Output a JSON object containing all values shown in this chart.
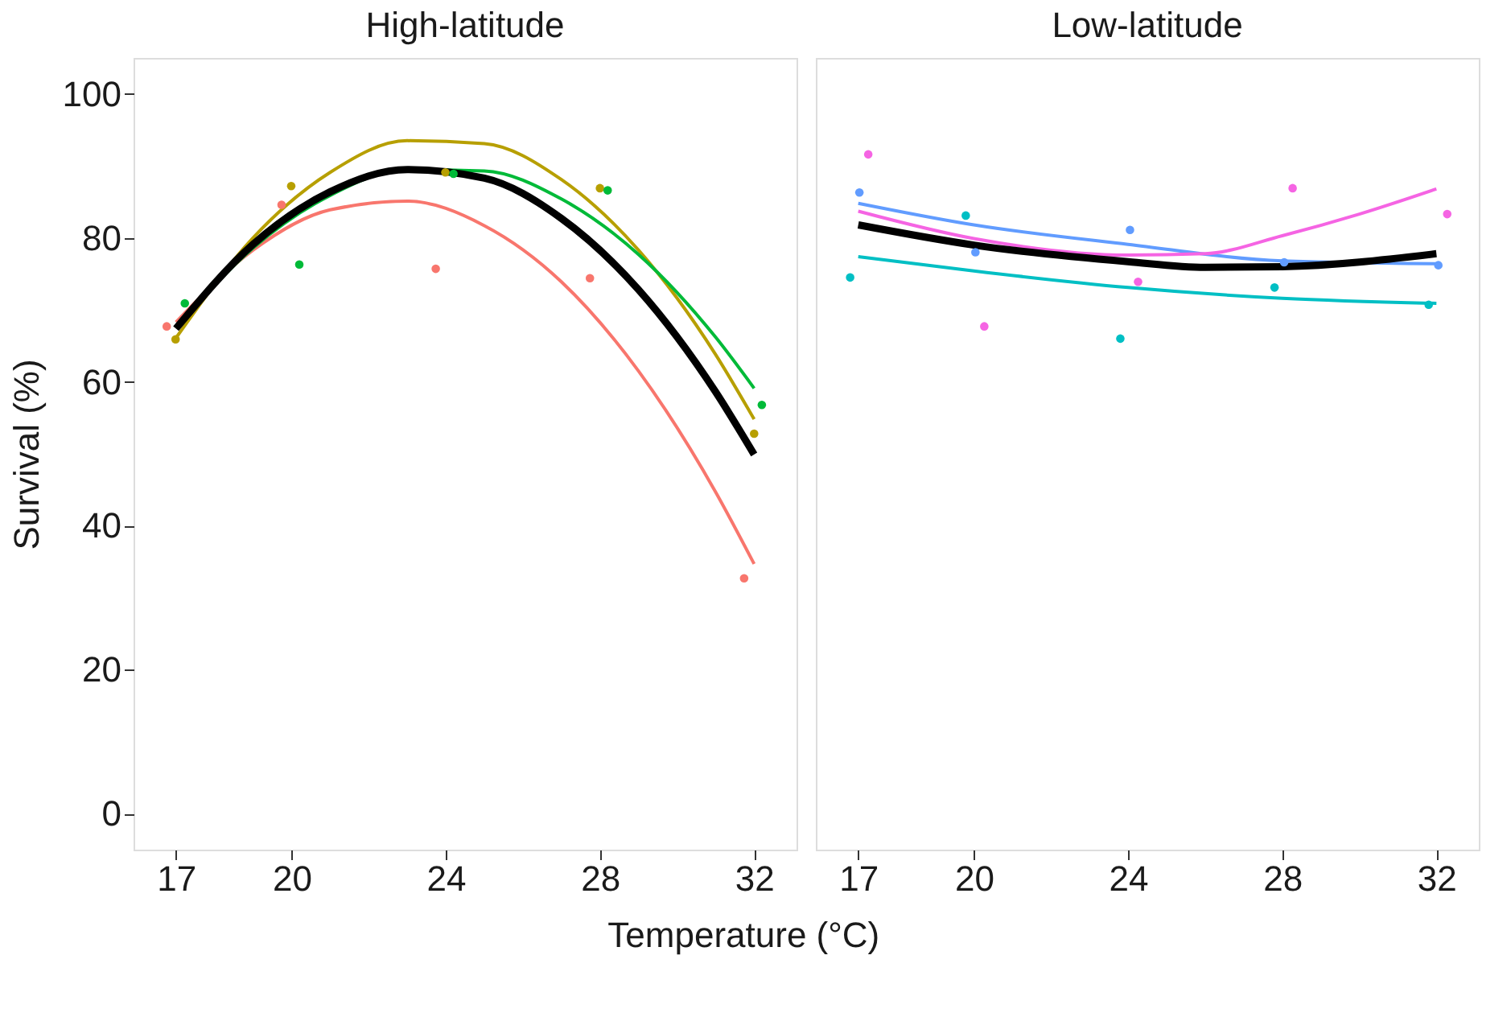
{
  "chart_data": [
    {
      "type": "line",
      "title": "High-latitude",
      "xlabel": "Temperature (°C)",
      "ylabel": "Survival (%)",
      "xlim": [
        15.9,
        33.1
      ],
      "ylim": [
        -5,
        105
      ],
      "xticks": [
        17,
        20,
        24,
        28,
        32
      ],
      "yticks": [
        0,
        20,
        40,
        60,
        80,
        100
      ],
      "grid": false,
      "series": [
        {
          "type": "scatter",
          "color": "#f8766d",
          "x": [
            16.76,
            19.74,
            23.74,
            27.74,
            31.74
          ],
          "values": [
            67.7,
            84.6,
            75.7,
            74.4,
            32.7
          ]
        },
        {
          "type": "scatter",
          "color": "#b79f00",
          "x": [
            16.99,
            19.99,
            23.99,
            28.0,
            32.0
          ],
          "values": [
            65.9,
            87.2,
            89.1,
            86.9,
            52.8
          ]
        },
        {
          "type": "scatter",
          "color": "#00ba38",
          "x": [
            17.23,
            20.2,
            24.2,
            28.2,
            32.2
          ],
          "values": [
            70.9,
            76.3,
            88.9,
            86.6,
            56.8
          ]
        },
        {
          "color": "#f8766d",
          "x": [
            17,
            19,
            21,
            23,
            25,
            27,
            29,
            31,
            32
          ],
          "values": [
            68.3,
            78.3,
            83.9,
            85.1,
            81.7,
            73.9,
            61.5,
            44.7,
            34.7
          ]
        },
        {
          "color": "#b79f00",
          "x": [
            17,
            19,
            21,
            23,
            25,
            27,
            29,
            31,
            32
          ],
          "values": [
            66.1,
            80.0,
            89.1,
            93.5,
            93.1,
            88.1,
            78.3,
            63.8,
            54.8
          ]
        },
        {
          "color": "#00ba38",
          "x": [
            17,
            19,
            21,
            23,
            25,
            27,
            29,
            31,
            32
          ],
          "values": [
            67.5,
            78.6,
            85.9,
            89.5,
            89.3,
            85.4,
            77.7,
            66.2,
            59.1
          ]
        },
        {
          "color": "#000000",
          "x": [
            17,
            19,
            21,
            23,
            25,
            27,
            29,
            31,
            32
          ],
          "values": [
            67.4,
            79.1,
            86.4,
            89.5,
            88.3,
            82.7,
            72.8,
            58.6,
            49.9
          ]
        }
      ]
    },
    {
      "type": "line",
      "title": "Low-latitude",
      "xlim": [
        15.9,
        33.1
      ],
      "ylim": [
        -5,
        105
      ],
      "xticks": [
        17,
        20,
        24,
        28,
        32
      ],
      "yticks": [
        0,
        20,
        40,
        60,
        80,
        100
      ],
      "grid": false,
      "tick_labels": "x",
      "series": [
        {
          "type": "scatter",
          "color": "#00bfc4",
          "x": [
            16.79,
            19.79,
            23.8,
            27.8,
            31.8
          ],
          "values": [
            74.5,
            83.1,
            66.0,
            73.1,
            70.7
          ]
        },
        {
          "type": "scatter",
          "color": "#619cff",
          "x": [
            17.03,
            20.04,
            24.05,
            28.05,
            32.05
          ],
          "values": [
            86.3,
            78.0,
            81.1,
            76.6,
            76.2
          ]
        },
        {
          "type": "scatter",
          "color": "#f564e3",
          "x": [
            17.26,
            20.27,
            24.26,
            28.27,
            32.28
          ],
          "values": [
            91.6,
            67.7,
            73.9,
            86.9,
            83.3
          ]
        },
        {
          "color": "#00bfc4",
          "x": [
            17,
            20,
            24,
            28,
            32
          ],
          "values": [
            77.4,
            75.4,
            73.1,
            71.6,
            70.9
          ]
        },
        {
          "color": "#619cff",
          "x": [
            17,
            20,
            24,
            28,
            32
          ],
          "values": [
            84.8,
            81.8,
            79.1,
            76.8,
            76.4
          ]
        },
        {
          "color": "#f564e3",
          "x": [
            17,
            20,
            24,
            26,
            28,
            30,
            32
          ],
          "values": [
            83.7,
            79.9,
            77.6,
            77.8,
            80.3,
            83.3,
            86.8
          ]
        },
        {
          "color": "#000000",
          "x": [
            17,
            20,
            24,
            26,
            28,
            32
          ],
          "values": [
            81.8,
            79.0,
            76.7,
            75.9,
            76.0,
            77.8
          ]
        }
      ]
    }
  ]
}
